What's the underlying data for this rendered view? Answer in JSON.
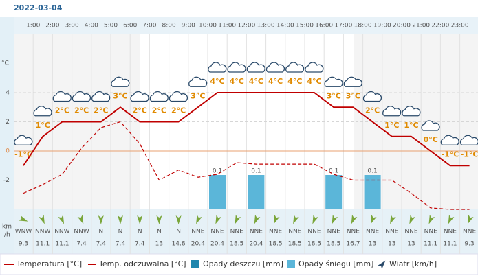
{
  "chart_data": {
    "type": "weather",
    "date": "2022-03-04",
    "hours": [
      "1:00",
      "2:00",
      "3:00",
      "4:00",
      "5:00",
      "6:00",
      "7:00",
      "8:00",
      "9:00",
      "10:00",
      "11:00",
      "12:00",
      "13:00",
      "14:00",
      "15:00",
      "16:00",
      "17:00",
      "18:00",
      "19:00",
      "20:00",
      "21:00",
      "22:00",
      "23:00"
    ],
    "ylabel": "°C",
    "ylim": [
      -4,
      8
    ],
    "yticks": [
      -2,
      0,
      2,
      4
    ],
    "temperature": {
      "name": "Temperatura [°C]",
      "color": "#c00000",
      "values": [
        -1,
        1,
        2,
        2,
        2,
        3,
        2,
        2,
        2,
        3,
        4,
        4,
        4,
        4,
        4,
        4,
        3,
        3,
        2,
        1,
        1,
        0,
        -1,
        -1
      ],
      "value_labels": [
        "-1°C",
        "1°C",
        "2°C",
        "2°C",
        "2°C",
        "3°C",
        "2°C",
        "2°C",
        "2°C",
        "3°C",
        "4°C",
        "4°C",
        "4°C",
        "4°C",
        "4°C",
        "4°C",
        "3°C",
        "3°C",
        "2°C",
        "1°C",
        "1°C",
        "0°C",
        "-1°C",
        "-1°C"
      ]
    },
    "feels_like": {
      "name": "Temp. odczuwalna [°C]",
      "color": "#c00000",
      "values": [
        -2.9,
        -2.3,
        -1.6,
        0.2,
        1.6,
        2,
        0.5,
        -2,
        -1.3,
        -1.8,
        -1.6,
        -0.8,
        -0.9,
        -0.9,
        -0.9,
        -0.9,
        -1.6,
        -2,
        -2,
        -2,
        -2.9,
        -3.9,
        -4,
        -4
      ]
    },
    "rain": {
      "name": "Opady deszczu [mm]",
      "color": "#1f86ad"
    },
    "snow": {
      "name": "Opady śniegu [mm]",
      "color": "#5bb6d9",
      "values": [
        null,
        null,
        null,
        null,
        null,
        null,
        null,
        null,
        null,
        null,
        0.1,
        null,
        0.1,
        null,
        null,
        null,
        0.1,
        null,
        0.1,
        null,
        null,
        null,
        null,
        null
      ]
    },
    "wind": {
      "name": "Wiatr [km/h]",
      "unit_top": "km",
      "unit_bottom": "/h",
      "directions": [
        "WNW",
        "NNW",
        "NNW",
        "NNW",
        "N",
        "N",
        "N",
        "N",
        "N",
        "NNE",
        "NNE",
        "NNE",
        "NNE",
        "NNE",
        "NNE",
        "NNE",
        "NNE",
        "NNE",
        "NNE",
        "NNE",
        "NNE",
        "NNE",
        "NNE",
        "NNE"
      ],
      "speeds": [
        9.3,
        11.1,
        11.1,
        7.4,
        7.4,
        7.4,
        7.4,
        13,
        14.8,
        20.4,
        20.4,
        18.5,
        20.4,
        18.5,
        18.5,
        18.5,
        18.5,
        16.7,
        13,
        13,
        13,
        11.1,
        11.1,
        9.3
      ]
    }
  }
}
